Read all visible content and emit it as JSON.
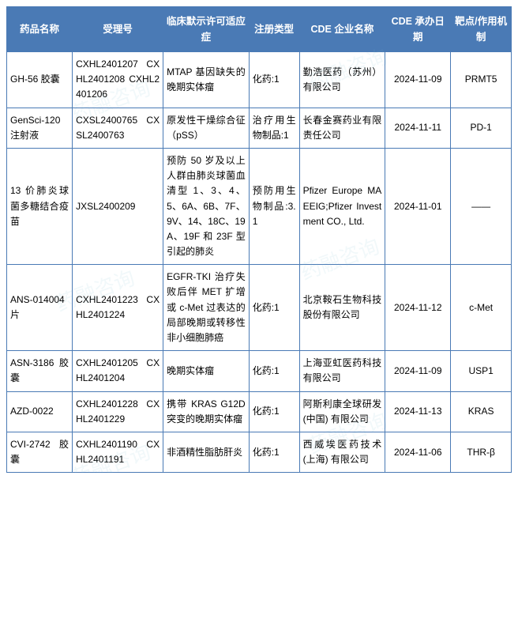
{
  "table": {
    "header_bg": "#4a7ab5",
    "header_fg": "#ffffff",
    "border_color": "#4a7ab5",
    "font_size_header": 12.5,
    "font_size_cell": 12,
    "columns": [
      {
        "key": "name",
        "label": "药品名称",
        "width_pct": 13
      },
      {
        "key": "acceptance",
        "label": "受理号",
        "width_pct": 18
      },
      {
        "key": "indication",
        "label": "临床默示许可适应症",
        "width_pct": 17
      },
      {
        "key": "reg_type",
        "label": "注册类型",
        "width_pct": 10
      },
      {
        "key": "company",
        "label": "CDE 企业名称",
        "width_pct": 17
      },
      {
        "key": "date",
        "label": "CDE 承办日期",
        "width_pct": 13
      },
      {
        "key": "target",
        "label": "靶点/作用机制",
        "width_pct": 12
      }
    ],
    "rows": [
      {
        "name": "GH-56 胶囊",
        "acceptance": "CXHL2401207 CXHL2401208 CXHL2401206",
        "indication": "MTAP 基因缺失的晚期实体瘤",
        "reg_type": "化药:1",
        "company": "勤浩医药（苏州）有限公司",
        "date": "2024-11-09",
        "target": "PRMT5"
      },
      {
        "name": "GenSci-120 注射液",
        "acceptance": "CXSL2400765 CXSL2400763",
        "indication": "原发性干燥综合征（pSS）",
        "reg_type": "治疗用生物制品:1",
        "company": "长春金赛药业有限责任公司",
        "date": "2024-11-11",
        "target": "PD-1"
      },
      {
        "name": "13 价肺炎球菌多糖结合疫苗",
        "acceptance": "JXSL2400209",
        "indication": "预防 50 岁及以上人群由肺炎球菌血清型 1、3、4、5、6A、6B、7F、9V、14、18C、19A、19F 和 23F 型引起的肺炎",
        "reg_type": "预防用生物制品:3.1",
        "company": "Pfizer Europe MA EEIG;Pfizer Investment CO., Ltd.",
        "date": "2024-11-01",
        "target": "——"
      },
      {
        "name": "ANS-014004片",
        "acceptance": "CXHL2401223 CXHL2401224",
        "indication": "EGFR-TKI 治疗失败后伴 MET 扩增或 c-Met 过表达的局部晚期或转移性非小细胞肺癌",
        "reg_type": "化药:1",
        "company": "北京鞍石生物科技股份有限公司",
        "date": "2024-11-12",
        "target": "c-Met"
      },
      {
        "name": "ASN-3186 胶囊",
        "acceptance": "CXHL2401205 CXHL2401204",
        "indication": "晚期实体瘤",
        "reg_type": "化药:1",
        "company": "上海亚虹医药科技有限公司",
        "date": "2024-11-09",
        "target": "USP1"
      },
      {
        "name": "AZD-0022",
        "acceptance": "CXHL2401228 CXHL2401229",
        "indication": "携带 KRAS G12D 突变的晚期实体瘤",
        "reg_type": "化药:1",
        "company": "阿斯利康全球研发 (中国) 有限公司",
        "date": "2024-11-13",
        "target": "KRAS"
      },
      {
        "name": "CVI-2742 胶囊",
        "acceptance": "CXHL2401190 CXHL2401191",
        "indication": "非酒精性脂肪肝炎",
        "reg_type": "化药:1",
        "company": "西威埃医药技术 (上海) 有限公司",
        "date": "2024-11-06",
        "target": "THR-β"
      }
    ]
  },
  "watermark": {
    "text": "药融咨询",
    "color": "rgba(120,190,210,0.10)",
    "font_size": 26,
    "rotation_deg": -20
  }
}
